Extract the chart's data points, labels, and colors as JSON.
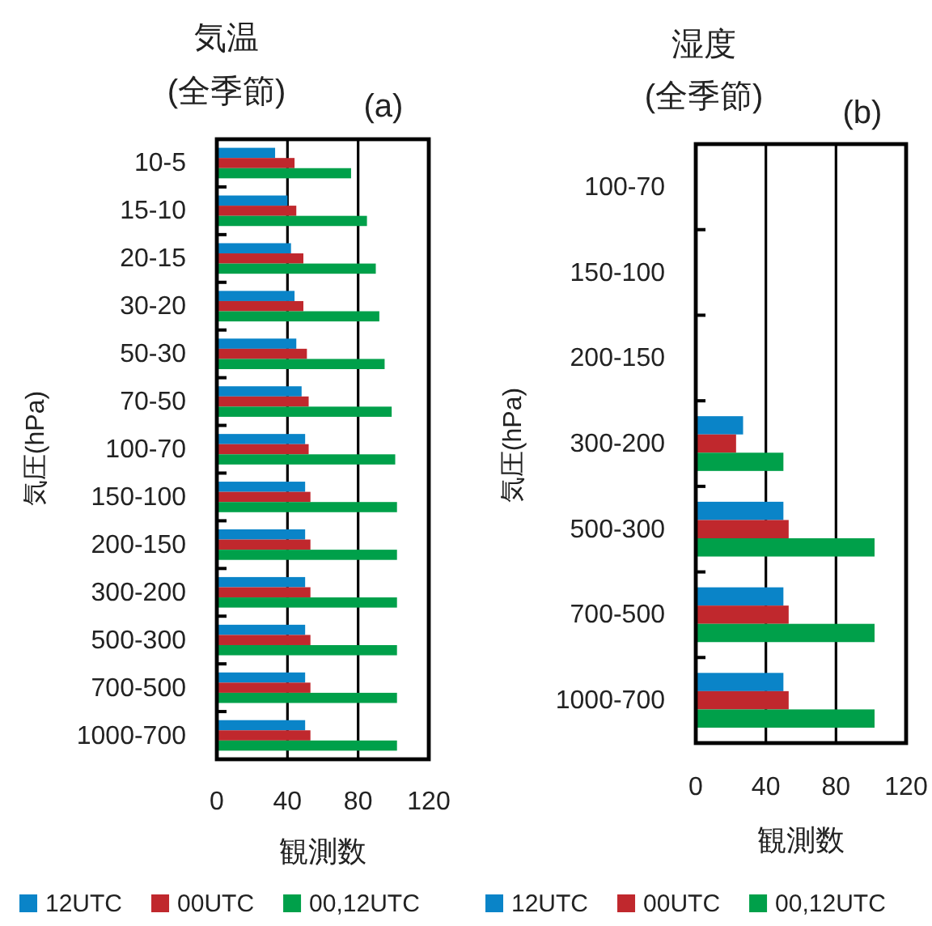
{
  "chart_data": [
    {
      "type": "bar",
      "orientation": "horizontal",
      "title": "気温",
      "subtitle": "(全季節)",
      "annotations": [
        "(a)"
      ],
      "ylabel": "気圧(hPa)",
      "xlabel": "観測数",
      "categories": [
        "10-5",
        "15-10",
        "20-15",
        "30-20",
        "50-30",
        "70-50",
        "100-70",
        "150-100",
        "200-150",
        "300-200",
        "500-300",
        "700-500",
        "1000-700"
      ],
      "series": [
        {
          "name": "12UTC",
          "color": "#0a84c8",
          "values": [
            33,
            40,
            42,
            44,
            45,
            48,
            50,
            50,
            50,
            50,
            50,
            50,
            50
          ]
        },
        {
          "name": "00UTC",
          "color": "#c0282d",
          "values": [
            44,
            45,
            49,
            49,
            51,
            52,
            52,
            53,
            53,
            53,
            53,
            53,
            53
          ]
        },
        {
          "name": "00,12UTC",
          "color": "#00a04a",
          "values": [
            76,
            85,
            90,
            92,
            95,
            99,
            101,
            102,
            102,
            102,
            102,
            102,
            102
          ]
        }
      ],
      "xlim": [
        0,
        120
      ],
      "xticks": [
        0,
        40,
        80,
        120
      ],
      "grid": "x",
      "legend": "bottom"
    },
    {
      "type": "bar",
      "orientation": "horizontal",
      "title": "湿度",
      "subtitle": "(全季節)",
      "annotations": [
        "(b)"
      ],
      "ylabel": "気圧(hPa)",
      "xlabel": "観測数",
      "categories": [
        "100-70",
        "150-100",
        "200-150",
        "300-200",
        "500-300",
        "700-500",
        "1000-700"
      ],
      "series": [
        {
          "name": "12UTC",
          "color": "#0a84c8",
          "values": [
            null,
            null,
            null,
            27,
            50,
            50,
            50
          ]
        },
        {
          "name": "00UTC",
          "color": "#c0282d",
          "values": [
            null,
            null,
            null,
            23,
            53,
            53,
            53
          ]
        },
        {
          "name": "00,12UTC",
          "color": "#00a04a",
          "values": [
            null,
            null,
            null,
            50,
            102,
            102,
            102
          ]
        }
      ],
      "xlim": [
        0,
        120
      ],
      "xticks": [
        0,
        40,
        80,
        120
      ],
      "grid": "x",
      "legend": "bottom"
    }
  ]
}
